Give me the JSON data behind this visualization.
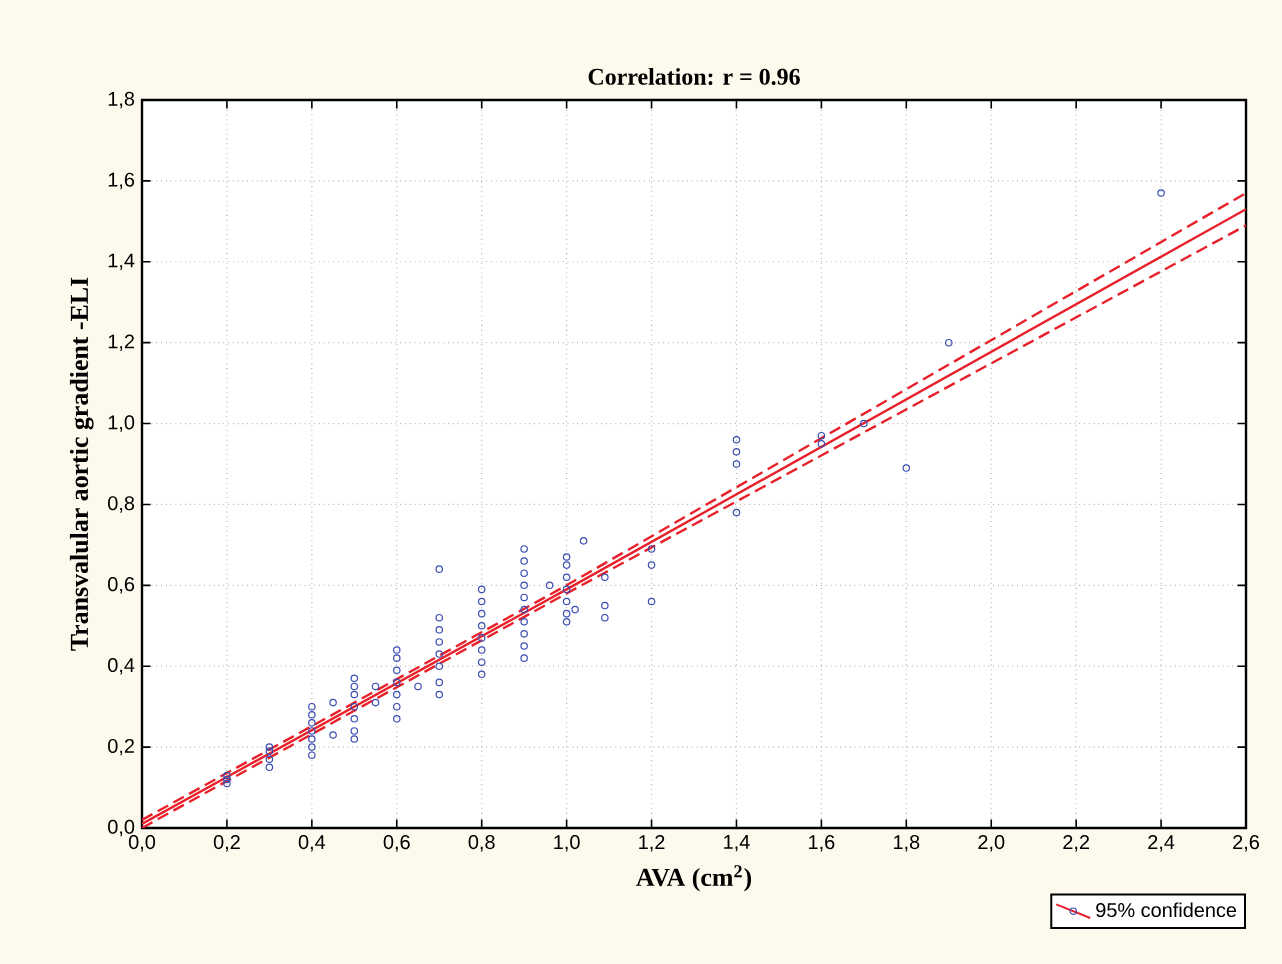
{
  "chart_data": {
    "type": "scatter",
    "title": "Correlation: r = 0.96",
    "xlabel": "AVA (cm$^{2}$)",
    "ylabel": "Transvalular aortic gradient -ELI",
    "xlim": [
      0,
      2.6
    ],
    "ylim": [
      0,
      1.8
    ],
    "xticks": [
      {
        "value": 0,
        "label": "0,0"
      },
      {
        "value": 0.2,
        "label": "0,2"
      },
      {
        "value": 0.4,
        "label": "0,4"
      },
      {
        "value": 0.6,
        "label": "0,6"
      },
      {
        "value": 0.8,
        "label": "0,8"
      },
      {
        "value": 1.0,
        "label": "1,0"
      },
      {
        "value": 1.2,
        "label": "1,2"
      },
      {
        "value": 1.4,
        "label": "1,4"
      },
      {
        "value": 1.6,
        "label": "1,6"
      },
      {
        "value": 1.8,
        "label": "1,8"
      },
      {
        "value": 2.0,
        "label": "2,0"
      },
      {
        "value": 2.2,
        "label": "2,2"
      },
      {
        "value": 2.4,
        "label": "2,4"
      },
      {
        "value": 2.6,
        "label": "2,6"
      }
    ],
    "yticks": [
      {
        "value": 0,
        "label": "0,0"
      },
      {
        "value": 0.2,
        "label": "0,2"
      },
      {
        "value": 0.4,
        "label": "0,4"
      },
      {
        "value": 0.6,
        "label": "0,6"
      },
      {
        "value": 0.8,
        "label": "0,8"
      },
      {
        "value": 1.0,
        "label": "1,0"
      },
      {
        "value": 1.2,
        "label": "1,2"
      },
      {
        "value": 1.4,
        "label": "1,4"
      },
      {
        "value": 1.6,
        "label": "1,6"
      },
      {
        "value": 1.8,
        "label": "1,8"
      }
    ],
    "grid": true,
    "legend": "bottom right",
    "series": [
      {
        "marker": "circle",
        "color": "#3a4db0",
        "x": [
          0.2,
          0.2,
          0.2,
          0.3,
          0.3,
          0.3,
          0.3,
          0.4,
          0.4,
          0.4,
          0.4,
          0.4,
          0.4,
          0.4,
          0.45,
          0.45,
          0.5,
          0.5,
          0.5,
          0.5,
          0.5,
          0.5,
          0.5,
          0.55,
          0.55,
          0.6,
          0.6,
          0.6,
          0.6,
          0.6,
          0.6,
          0.6,
          0.65,
          0.7,
          0.7,
          0.7,
          0.7,
          0.7,
          0.7,
          0.7,
          0.7,
          0.8,
          0.8,
          0.8,
          0.8,
          0.8,
          0.8,
          0.8,
          0.8,
          0.9,
          0.9,
          0.9,
          0.9,
          0.9,
          0.9,
          0.9,
          0.9,
          0.9,
          0.9,
          0.96,
          1.0,
          1.0,
          1.0,
          1.0,
          1.0,
          1.0,
          1.0,
          1.02,
          1.04,
          1.09,
          1.09,
          1.09,
          1.2,
          1.2,
          1.2,
          1.4,
          1.4,
          1.4,
          1.4,
          1.6,
          1.6,
          1.7,
          1.8,
          1.9,
          2.4
        ],
        "values": [
          0.11,
          0.12,
          0.13,
          0.15,
          0.17,
          0.19,
          0.2,
          0.18,
          0.2,
          0.22,
          0.24,
          0.26,
          0.28,
          0.3,
          0.31,
          0.23,
          0.22,
          0.24,
          0.27,
          0.3,
          0.33,
          0.35,
          0.37,
          0.35,
          0.31,
          0.27,
          0.3,
          0.33,
          0.36,
          0.39,
          0.42,
          0.44,
          0.35,
          0.33,
          0.36,
          0.4,
          0.43,
          0.46,
          0.49,
          0.52,
          0.64,
          0.38,
          0.41,
          0.44,
          0.47,
          0.5,
          0.53,
          0.56,
          0.59,
          0.42,
          0.45,
          0.48,
          0.51,
          0.54,
          0.57,
          0.6,
          0.63,
          0.66,
          0.69,
          0.6,
          0.51,
          0.53,
          0.56,
          0.59,
          0.62,
          0.65,
          0.67,
          0.54,
          0.71,
          0.62,
          0.55,
          0.52,
          0.65,
          0.69,
          0.56,
          0.78,
          0.9,
          0.93,
          0.96,
          0.95,
          0.97,
          1.0,
          0.89,
          1.2,
          1.57
        ]
      },
      {
        "type": "line",
        "name": "95% confidence",
        "color": "#e8202a",
        "line_style": "solid",
        "x": [
          0,
          1.0,
          2.6
        ],
        "values": [
          0.01,
          0.59,
          1.53
        ]
      },
      {
        "type": "line",
        "color": "#e8202a",
        "line_style": "dashed",
        "x": [
          0,
          1.0,
          2.6
        ],
        "values": [
          0.02,
          0.6,
          1.57
        ]
      },
      {
        "type": "line",
        "color": "#e8202a",
        "line_style": "dashed",
        "x": [
          0,
          1.0,
          2.6
        ],
        "values": [
          0,
          0.58,
          1.49
        ]
      }
    ]
  }
}
